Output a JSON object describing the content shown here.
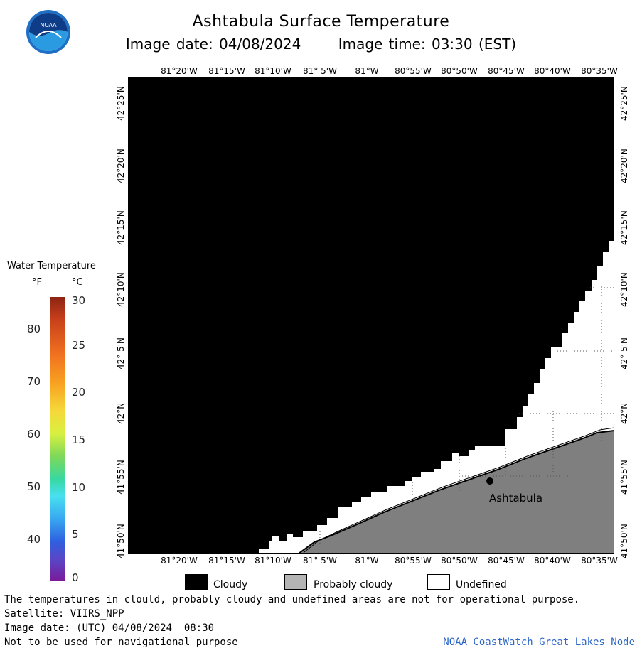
{
  "header": {
    "title": "Ashtabula Surface Temperature",
    "image_date": "Image date: 04/08/2024",
    "image_time": "Image time: 03:30 (EST)"
  },
  "map": {
    "lon_labels": [
      "81°20'W",
      "81°15'W",
      "81°10'W",
      "81° 5'W",
      "81°W",
      "80°55'W",
      "80°50'W",
      "80°45'W",
      "80°40'W",
      "80°35'W"
    ],
    "lat_labels": [
      "42°25'N",
      "42°20'N",
      "42°15'N",
      "42°10'N",
      "42° 5'N",
      "42°N",
      "41°55'N",
      "41°50'N"
    ],
    "city_label": "Ashtabula",
    "colors": {
      "cloudy": "#000000",
      "probably_cloudy": "#7f7f7f",
      "undefined": "#ffffff"
    }
  },
  "scale": {
    "title": "Water Temperature",
    "unit_f": "°F",
    "unit_c": "°C",
    "f_ticks": [
      "80",
      "70",
      "60",
      "50",
      "40"
    ],
    "c_ticks": [
      "30",
      "25",
      "20",
      "15",
      "10",
      "5",
      "0"
    ]
  },
  "legend": {
    "cloudy": "Cloudy",
    "probably_cloudy": "Probably cloudy",
    "undefined": "Undefined"
  },
  "footer": {
    "disclaimer": "The temperatures in clould, probably cloudy and undefined areas are not for operational purpose.",
    "satellite": "Satellite: VIIRS_NPP",
    "utc_date": "Image date: (UTC) 04/08/2024  08:30",
    "navigation": "Not to be used for navigational purpose",
    "credit": "NOAA CoastWatch Great Lakes Node"
  }
}
